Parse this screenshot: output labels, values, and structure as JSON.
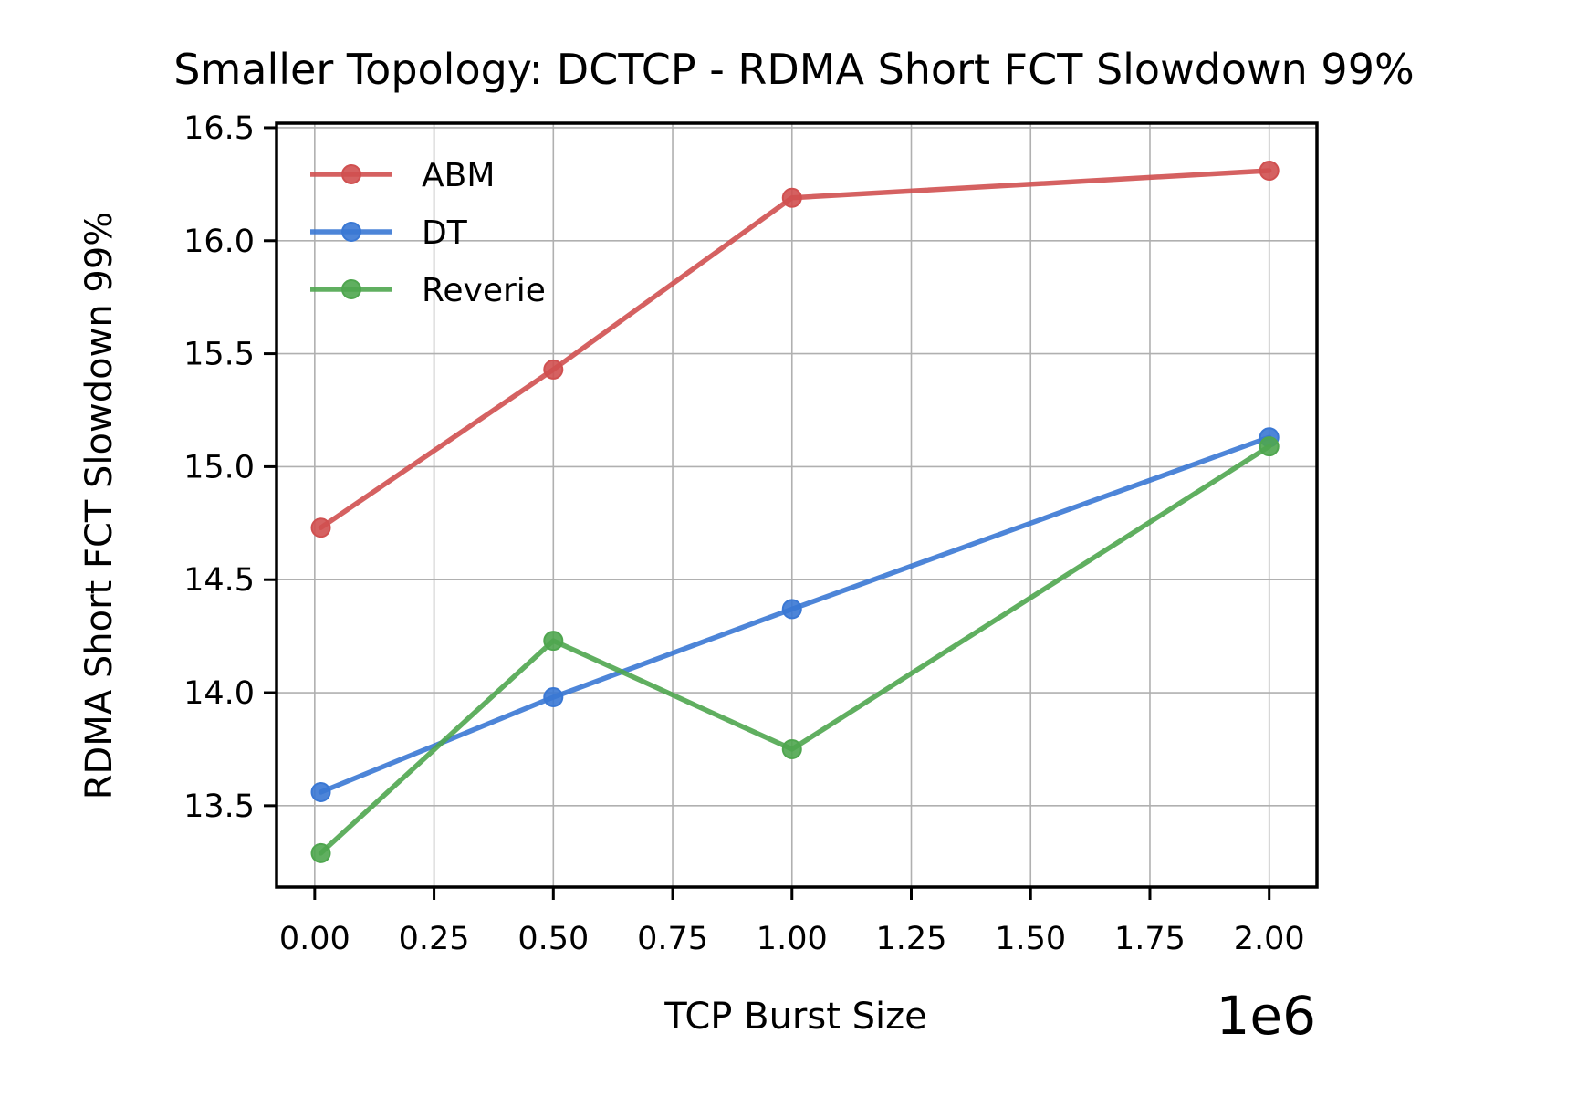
{
  "chart_data": {
    "type": "line",
    "title": "Smaller Topology: DCTCP - RDMA Short FCT Slowdown 99%",
    "xlabel": "TCP Burst Size",
    "ylabel": "RDMA Short FCT Slowdown 99%",
    "x_offset_label": "1e6",
    "x_scale": 1000000,
    "xlim": [
      -0.08,
      2.1
    ],
    "ylim": [
      13.14,
      16.52
    ],
    "xticks": [
      0.0,
      0.25,
      0.5,
      0.75,
      1.0,
      1.25,
      1.5,
      1.75,
      2.0
    ],
    "xtick_labels": [
      "0.00",
      "0.25",
      "0.50",
      "0.75",
      "1.00",
      "1.25",
      "1.50",
      "1.75",
      "2.00"
    ],
    "yticks": [
      13.5,
      14.0,
      14.5,
      15.0,
      15.5,
      16.0,
      16.5
    ],
    "ytick_labels": [
      "13.5",
      "14.0",
      "14.5",
      "15.0",
      "15.5",
      "16.0",
      "16.5"
    ],
    "grid": true,
    "legend_position": "upper-left",
    "x": [
      0.0128,
      0.5,
      1.0,
      2.0
    ],
    "series": [
      {
        "name": "ABM",
        "color": "#d05050",
        "values": [
          14.73,
          15.43,
          16.19,
          16.31
        ]
      },
      {
        "name": "DT",
        "color": "#3a78d4",
        "values": [
          13.56,
          13.98,
          14.37,
          15.13
        ]
      },
      {
        "name": "Reverie",
        "color": "#4fa64f",
        "values": [
          13.29,
          14.23,
          13.75,
          15.09
        ]
      }
    ]
  }
}
